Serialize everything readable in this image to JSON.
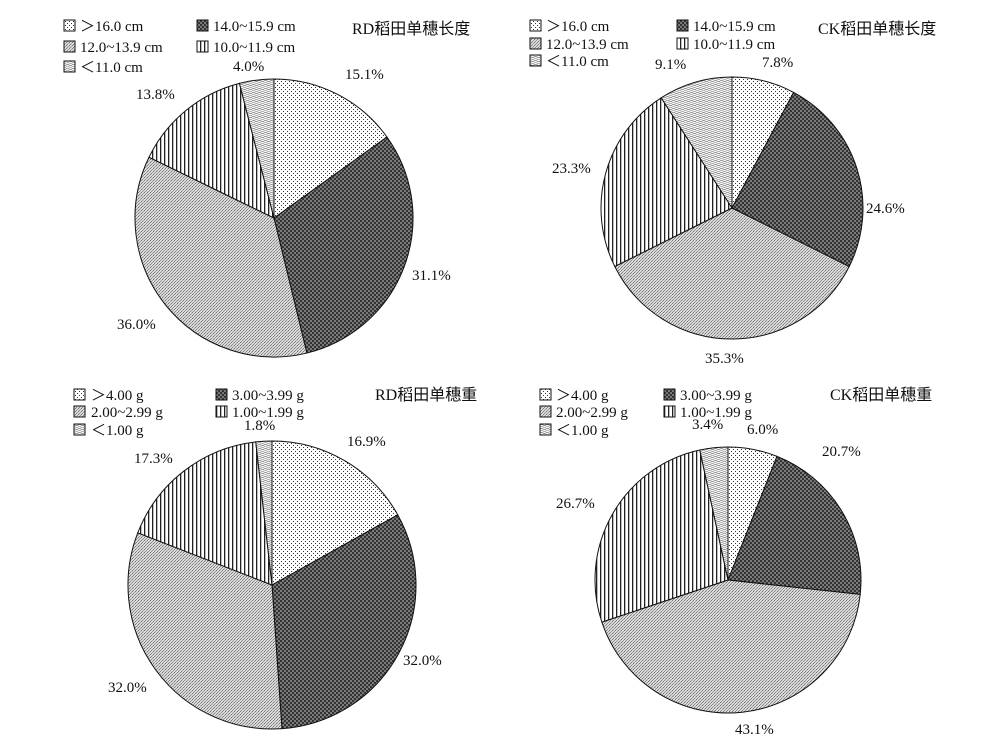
{
  "colors": {
    "stroke": "#111111",
    "dots": "#ffffff",
    "dark_checker": "#555555",
    "light_checker": "#c8c8c8",
    "vertical_stripes": "#ffffff",
    "wave": "#e0e0e0"
  },
  "chart_data": [
    {
      "type": "pie",
      "title": "RD稻田单穗长度",
      "legend": [
        "＞16.0 cm",
        "14.0~15.9 cm",
        "12.0~13.9 cm",
        "10.0~11.9 cm",
        "＜11.0 cm"
      ],
      "values": [
        15.1,
        31.1,
        36.0,
        13.8,
        4.0
      ],
      "labels": [
        "15.1%",
        "31.1%",
        "36.0%",
        "13.8%",
        "4.0%"
      ],
      "start": "12 o'clock",
      "direction": "clockwise"
    },
    {
      "type": "pie",
      "title": "CK稻田单穗长度",
      "legend": [
        "＞16.0 cm",
        "14.0~15.9 cm",
        "12.0~13.9 cm",
        "10.0~11.9 cm",
        "＜11.0 cm"
      ],
      "values": [
        7.8,
        24.6,
        35.3,
        23.3,
        9.1
      ],
      "labels": [
        "7.8%",
        "24.6%",
        "35.3%",
        "23.3%",
        "9.1%"
      ],
      "start": "12 o'clock",
      "direction": "clockwise"
    },
    {
      "type": "pie",
      "title": "RD稻田单穗重",
      "legend": [
        "＞4.00 g",
        "3.00~3.99 g",
        "2.00~2.99 g",
        "1.00~1.99 g",
        "＜1.00 g"
      ],
      "values": [
        16.9,
        32.0,
        32.0,
        17.3,
        1.8
      ],
      "labels": [
        "16.9%",
        "32.0%",
        "32.0%",
        "17.3%",
        "1.8%"
      ],
      "start": "12 o'clock",
      "direction": "clockwise"
    },
    {
      "type": "pie",
      "title": "CK稻田单穗重",
      "legend": [
        "＞4.00 g",
        "3.00~3.99 g",
        "2.00~2.99 g",
        "1.00~1.99 g",
        "＜1.00 g"
      ],
      "values": [
        6.0,
        20.7,
        43.1,
        26.7,
        3.4
      ],
      "labels": [
        "6.0%",
        "20.7%",
        "43.1%",
        "26.7%",
        "3.4%"
      ],
      "start": "12 o'clock",
      "direction": "clockwise"
    }
  ]
}
